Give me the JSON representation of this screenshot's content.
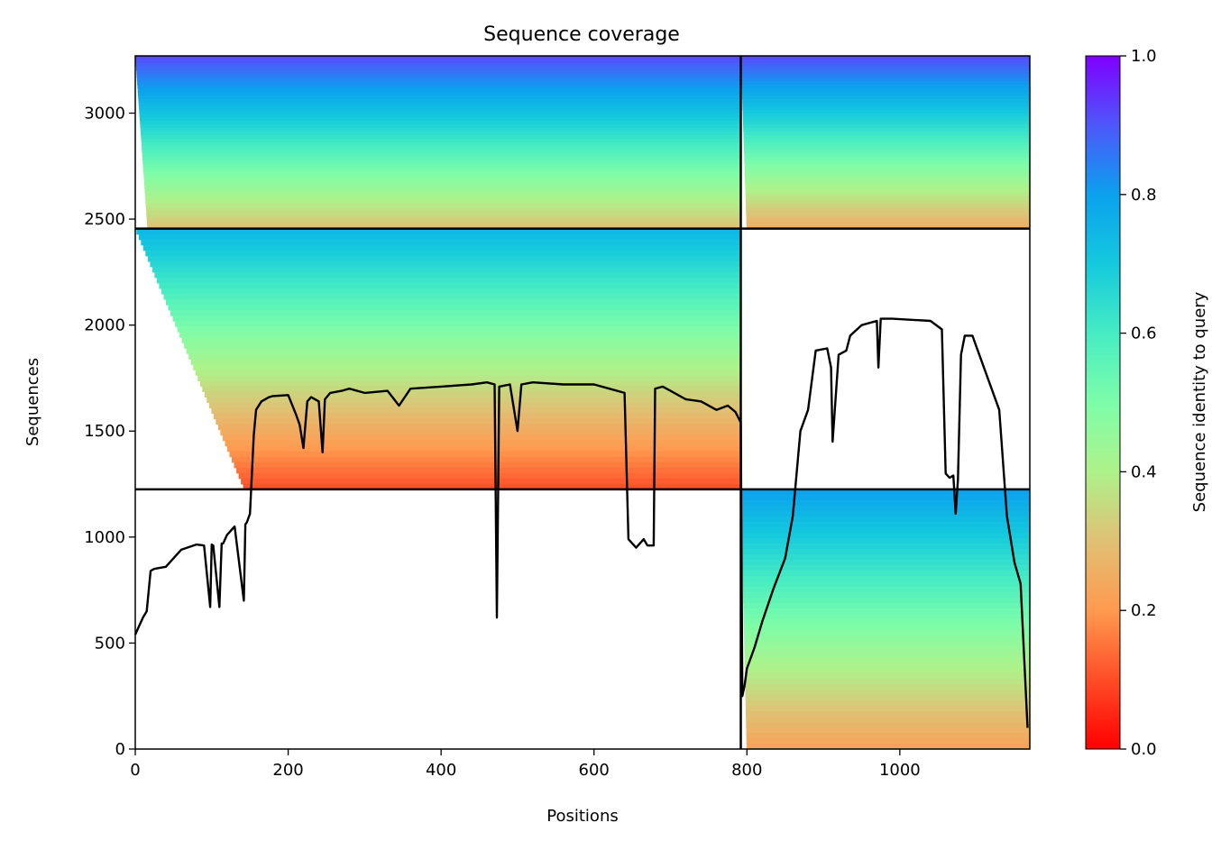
{
  "chart_data": {
    "type": "heatmap",
    "title": "Sequence coverage",
    "xlabel": "Positions",
    "ylabel": "Sequences",
    "xlim": [
      0,
      1170
    ],
    "ylim": [
      0,
      3270
    ],
    "x_ticks": [
      0,
      200,
      400,
      600,
      800,
      1000
    ],
    "y_ticks": [
      0,
      500,
      1000,
      1500,
      2000,
      2500,
      3000
    ],
    "colorbar": {
      "label": "Sequence identity to query",
      "range": [
        0.0,
        1.0
      ],
      "ticks": [
        "0.0",
        "0.2",
        "0.4",
        "0.6",
        "0.8",
        "1.0"
      ],
      "colormap": "rainbow_r"
    },
    "chain_boundaries": {
      "x": [
        792
      ],
      "y": [
        1225,
        2455
      ]
    },
    "blocks": [
      {
        "name": "chain A pair",
        "x": [
          0,
          792
        ],
        "y": [
          2455,
          3270
        ],
        "identity_bottom": 0.3,
        "identity_top": 0.92
      },
      {
        "name": "chain B pair",
        "x": [
          792,
          1170
        ],
        "y": [
          2455,
          3270
        ],
        "identity_bottom": 0.25,
        "identity_top": 0.92
      },
      {
        "name": "chain A only",
        "x": [
          0,
          792
        ],
        "y": [
          1225,
          2455
        ],
        "identity_bottom": 0.1,
        "identity_top": 0.75
      },
      {
        "name": "chain B only",
        "x": [
          792,
          1170
        ],
        "y": [
          0,
          1225
        ],
        "identity_bottom": 0.22,
        "identity_top": 0.8
      }
    ],
    "coverage_line": {
      "name": "coverage",
      "x": [
        0,
        5,
        10,
        15,
        20,
        22,
        25,
        40,
        60,
        80,
        90,
        98,
        100,
        102,
        110,
        113,
        115,
        120,
        130,
        142,
        144,
        146,
        150,
        155,
        158,
        165,
        175,
        180,
        200,
        210,
        215,
        220,
        225,
        230,
        240,
        245,
        248,
        255,
        270,
        280,
        300,
        330,
        345,
        360,
        400,
        440,
        460,
        470,
        473,
        476,
        490,
        500,
        505,
        520,
        560,
        600,
        620,
        640,
        645,
        655,
        665,
        670,
        678,
        680,
        690,
        700,
        720,
        740,
        760,
        775,
        785,
        792,
        794,
        797,
        800,
        810,
        820,
        835,
        850,
        860,
        870,
        880,
        890,
        905,
        910,
        912,
        920,
        930,
        935,
        950,
        970,
        972,
        975,
        990,
        1040,
        1055,
        1060,
        1065,
        1070,
        1073,
        1076,
        1080,
        1085,
        1095,
        1100,
        1110,
        1120,
        1130,
        1140,
        1150,
        1158,
        1163,
        1167
      ],
      "y": [
        540,
        580,
        620,
        650,
        840,
        845,
        850,
        860,
        940,
        965,
        960,
        670,
        965,
        960,
        670,
        970,
        970,
        1010,
        1050,
        700,
        1060,
        1070,
        1110,
        1480,
        1600,
        1640,
        1660,
        1665,
        1670,
        1580,
        1530,
        1420,
        1640,
        1660,
        1640,
        1400,
        1650,
        1680,
        1690,
        1700,
        1680,
        1690,
        1620,
        1700,
        1710,
        1720,
        1730,
        1720,
        620,
        1710,
        1720,
        1500,
        1720,
        1730,
        1720,
        1720,
        1700,
        1680,
        990,
        950,
        990,
        960,
        960,
        1700,
        1710,
        1690,
        1650,
        1640,
        1600,
        1620,
        1590,
        1540,
        250,
        300,
        380,
        480,
        600,
        760,
        900,
        1100,
        1500,
        1600,
        1880,
        1890,
        1800,
        1450,
        1860,
        1880,
        1950,
        2000,
        2020,
        1800,
        2030,
        2030,
        2020,
        1980,
        1300,
        1280,
        1290,
        1110,
        1270,
        1860,
        1950,
        1950,
        1900,
        1800,
        1700,
        1600,
        1100,
        880,
        780,
        400,
        100
      ]
    }
  }
}
